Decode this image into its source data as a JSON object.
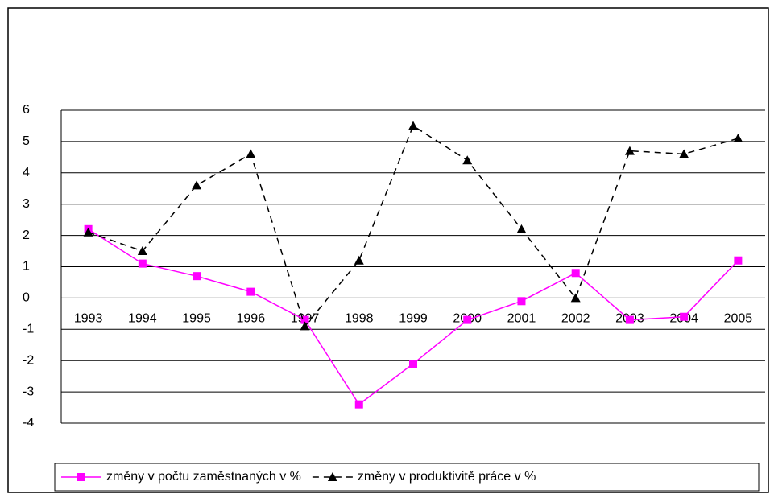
{
  "chart_data": {
    "type": "line",
    "categories": [
      "1993",
      "1994",
      "1995",
      "1996",
      "1997",
      "1998",
      "1999",
      "2000",
      "2001",
      "2002",
      "2003",
      "2004",
      "2005"
    ],
    "series": [
      {
        "name": "změny v počtu zaměstnaných v %",
        "color": "#ff00ff",
        "marker": "square",
        "dash": false,
        "values": [
          2.2,
          1.1,
          0.7,
          0.2,
          -0.7,
          -3.4,
          -2.1,
          -0.7,
          -0.1,
          0.8,
          -0.7,
          -0.6,
          1.2
        ]
      },
      {
        "name": "změny v produktivitě práce v %",
        "color": "#000000",
        "marker": "triangle",
        "dash": true,
        "values": [
          2.1,
          1.5,
          3.6,
          4.6,
          -0.9,
          1.2,
          5.5,
          4.4,
          2.2,
          0.0,
          4.7,
          4.6,
          5.1
        ]
      }
    ],
    "ylim": [
      -4,
      6
    ],
    "yticks": [
      -4,
      -3,
      -2,
      -1,
      0,
      1,
      2,
      3,
      4,
      5,
      6
    ],
    "grid": true,
    "legend": "bottom"
  }
}
